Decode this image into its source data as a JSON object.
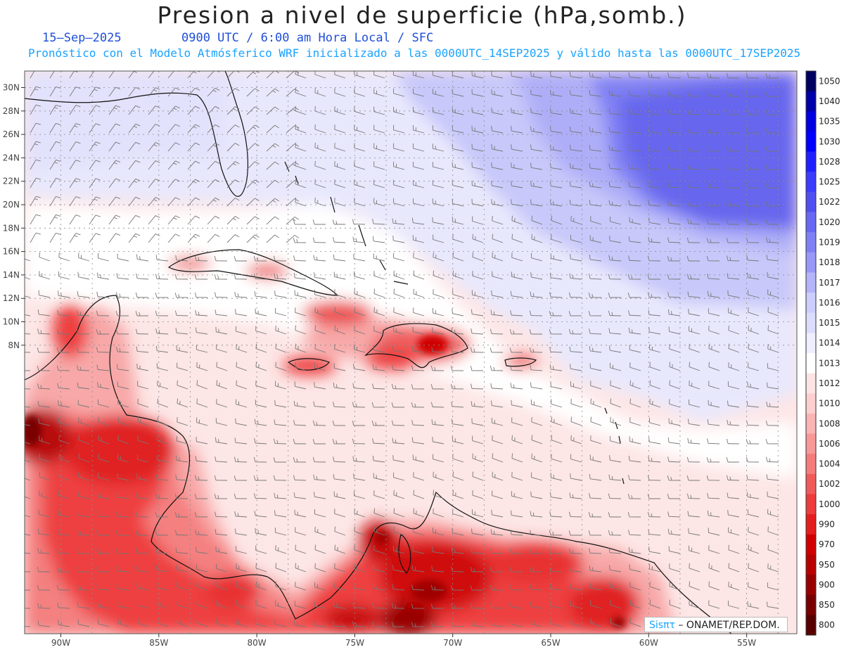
{
  "header": {
    "title": "Presion a nivel de superficie (hPa,somb.)",
    "date": "15–Sep–2025",
    "time_line": "0900 UTC / 6:00 am Hora Local / SFC",
    "description": "Pronóstico con el Modelo Atmósferico WRF inicializado a las 0000UTC_14SEP2025 y válido hasta las  0000UTC_17SEP2025"
  },
  "map": {
    "lat_labels": [
      "30N",
      "28N",
      "26N",
      "24N",
      "22N",
      "20N",
      "18N",
      "16N",
      "14N",
      "12N",
      "10N",
      "8N"
    ],
    "lon_labels": [
      "90W",
      "85W",
      "80W",
      "75W",
      "70W",
      "65W",
      "60W",
      "55W"
    ]
  },
  "colorbar": {
    "levels": [
      "1050",
      "1040",
      "1035",
      "1030",
      "1028",
      "1025",
      "1022",
      "1020",
      "1019",
      "1018",
      "1017",
      "1016",
      "1015",
      "1014",
      "1013",
      "1012",
      "1010",
      "1008",
      "1006",
      "1004",
      "1002",
      "1000",
      "990",
      "970",
      "950",
      "900",
      "850",
      "800"
    ],
    "colors": [
      "#000060",
      "#0000a8",
      "#0000e0",
      "#0000ff",
      "#2020ff",
      "#3c3cff",
      "#5050f0",
      "#6868f4",
      "#8080f6",
      "#9898f8",
      "#b4b4fa",
      "#cccffc",
      "#dcdcfc",
      "#eeeeff",
      "#ffffff",
      "#fde4e4",
      "#fcd0d0",
      "#fab4b4",
      "#f89898",
      "#f47c7c",
      "#f05a5a",
      "#ec3c3c",
      "#e41e1e",
      "#d00000",
      "#b80000",
      "#980000",
      "#780000",
      "#580000"
    ]
  },
  "credit": {
    "brand": "Sisπτ",
    "org": " – ONAMET/REP.DOM."
  }
}
